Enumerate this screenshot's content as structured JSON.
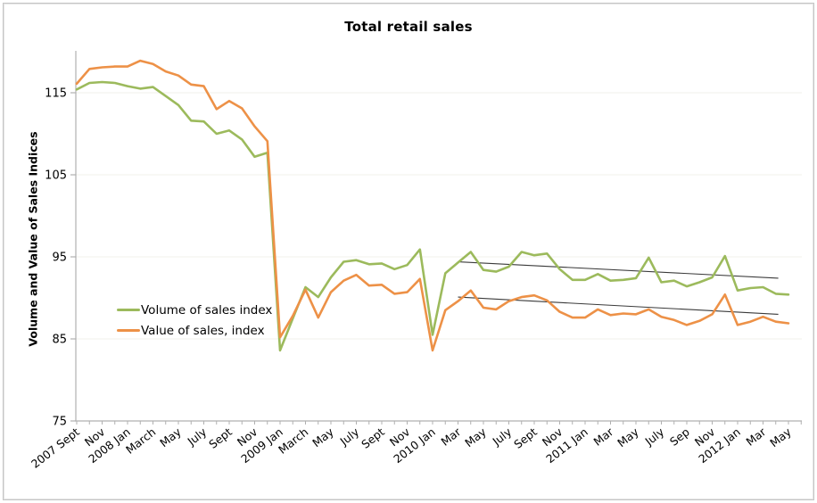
{
  "window": {
    "background": "#ffffff",
    "frame_border_color": "#c6c6c6"
  },
  "chart": {
    "title": "Total retail sales",
    "ylabel": "Volume and Value of Sales Indices"
  },
  "legend": {
    "items": [
      {
        "label": "Volume of sales index",
        "color": "#9CBA5C"
      },
      {
        "label": "Value of sales, index",
        "color": "#ED9147"
      }
    ]
  },
  "chart_data": {
    "type": "line",
    "title": "Total retail sales",
    "xlabel": "",
    "ylabel": "Volume and Value of Sales Indices",
    "ylim": [
      75,
      120
    ],
    "yticks": [
      115,
      105,
      95,
      85,
      75
    ],
    "grid": "horizontal",
    "legend_position": "inside-left",
    "x_tick_labels": [
      "2007 Sept",
      "Nov",
      "2008 Jan",
      "March",
      "May",
      "July",
      "Sept",
      "Nov",
      "2009 Jan",
      "March",
      "May",
      "July",
      "Sept",
      "Nov",
      "2010 Jan",
      "Mar",
      "May",
      "July",
      "Sept",
      "Nov",
      "2011 Jan",
      "Mar",
      "May",
      "July",
      "Sep",
      "Nov",
      "2012 Jan",
      "Mar",
      "May"
    ],
    "months": [
      "2007-09",
      "2007-10",
      "2007-11",
      "2007-12",
      "2008-01",
      "2008-02",
      "2008-03",
      "2008-04",
      "2008-05",
      "2008-06",
      "2008-07",
      "2008-08",
      "2008-09",
      "2008-10",
      "2008-11",
      "2008-12",
      "2009-01",
      "2009-02",
      "2009-03",
      "2009-04",
      "2009-05",
      "2009-06",
      "2009-07",
      "2009-08",
      "2009-09",
      "2009-10",
      "2009-11",
      "2009-12",
      "2010-01",
      "2010-02",
      "2010-03",
      "2010-04",
      "2010-05",
      "2010-06",
      "2010-07",
      "2010-08",
      "2010-09",
      "2010-10",
      "2010-11",
      "2010-12",
      "2011-01",
      "2011-02",
      "2011-03",
      "2011-04",
      "2011-05",
      "2011-06",
      "2011-07",
      "2011-08",
      "2011-09",
      "2011-10",
      "2011-11",
      "2011-12",
      "2012-01",
      "2012-02",
      "2012-03",
      "2012-04",
      "2012-05"
    ],
    "series": [
      {
        "name": "Volume of sales index",
        "color": "#9CBA5C",
        "values": [
          115.4,
          116.2,
          116.3,
          116.2,
          115.8,
          115.5,
          115.7,
          114.6,
          113.5,
          111.6,
          111.5,
          110.0,
          110.4,
          109.3,
          107.2,
          107.7,
          83.6,
          87.5,
          91.3,
          90.1,
          92.5,
          94.4,
          94.6,
          94.1,
          94.2,
          93.5,
          94.0,
          95.9,
          85.5,
          93.0,
          94.3,
          95.6,
          93.4,
          93.2,
          93.8,
          95.6,
          95.2,
          95.4,
          93.5,
          92.2,
          92.2,
          92.9,
          92.1,
          92.2,
          92.4,
          94.9,
          91.9,
          92.1,
          91.4,
          91.9,
          92.5,
          95.1,
          90.9,
          91.2,
          91.3,
          90.5,
          90.4
        ]
      },
      {
        "name": "Value of sales, index",
        "color": "#ED9147",
        "values": [
          116.1,
          117.9,
          118.1,
          118.2,
          118.2,
          118.9,
          118.5,
          117.6,
          117.1,
          116.0,
          115.8,
          113.0,
          114.0,
          113.1,
          110.9,
          109.1,
          85.2,
          87.8,
          91.0,
          87.6,
          90.7,
          92.1,
          92.8,
          91.5,
          91.6,
          90.5,
          90.7,
          92.3,
          83.6,
          88.5,
          89.6,
          90.9,
          88.8,
          88.6,
          89.6,
          90.1,
          90.3,
          89.7,
          88.3,
          87.6,
          87.6,
          88.6,
          87.9,
          88.1,
          88.0,
          88.6,
          87.7,
          87.3,
          86.7,
          87.2,
          88.0,
          90.4,
          86.7,
          87.1,
          87.7,
          87.1,
          86.9
        ]
      }
    ],
    "trend_lines": [
      {
        "series": "Volume of sales index",
        "color": "#3a3a3a",
        "start_month_index": 30.0,
        "start_value": 94.4,
        "end_month_index": 55.2,
        "end_value": 92.4
      },
      {
        "series": "Value of sales, index",
        "color": "#3a3a3a",
        "start_month_index": 30.0,
        "start_value": 90.1,
        "end_month_index": 55.2,
        "end_value": 88.0
      }
    ],
    "axis_color": "#b0b0b0",
    "gridline_color": "#f1f0eb",
    "tick_label_color": "#000000"
  }
}
